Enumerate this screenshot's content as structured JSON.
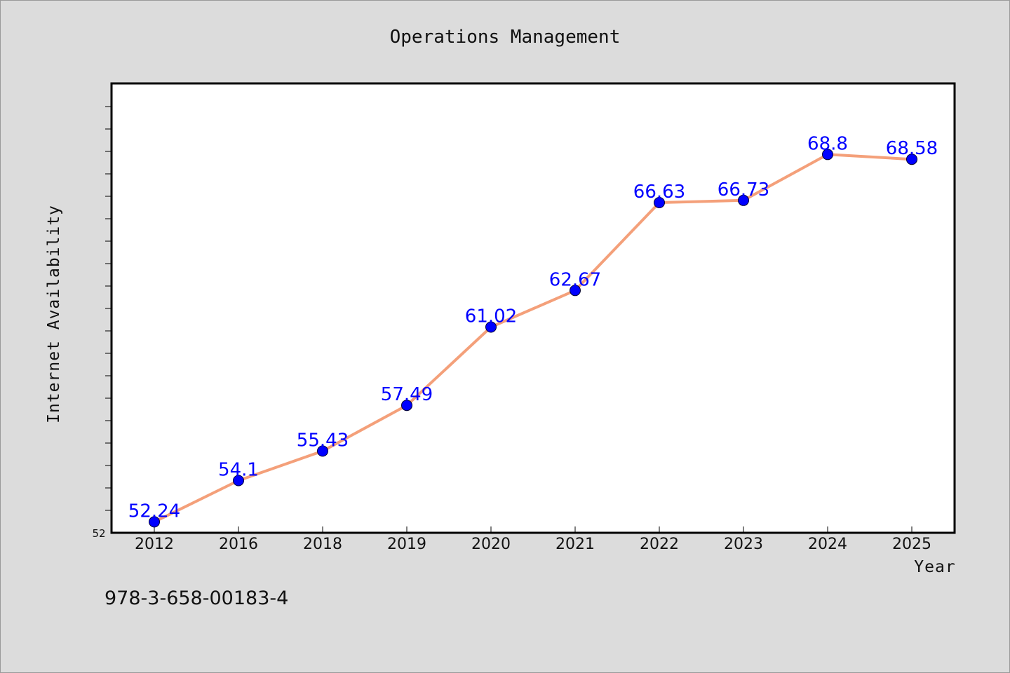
{
  "chart_data": {
    "type": "line",
    "title": "Operations Management",
    "xlabel": "Year",
    "ylabel": "Internet Availability",
    "categories": [
      "2012",
      "2016",
      "2018",
      "2019",
      "2020",
      "2021",
      "2022",
      "2023",
      "2024",
      "2025"
    ],
    "series": [
      {
        "values": [
          52.24,
          54.1,
          55.43,
          57.49,
          61.02,
          62.67,
          66.63,
          66.73,
          68.8,
          68.58
        ],
        "line_color": "#f4a07a",
        "marker_color": "#0000ff"
      }
    ],
    "data_labels": [
      "52.24",
      "54.1",
      "55.43",
      "57.49",
      "61.02",
      "62.67",
      "66.63",
      "66.73",
      "68.8",
      "68.58"
    ],
    "y_tick_labels": [
      "52"
    ],
    "ylim": [
      52,
      72
    ],
    "grid": false,
    "label_color": "#0000ff"
  },
  "footnote": "978-3-658-00183-4"
}
